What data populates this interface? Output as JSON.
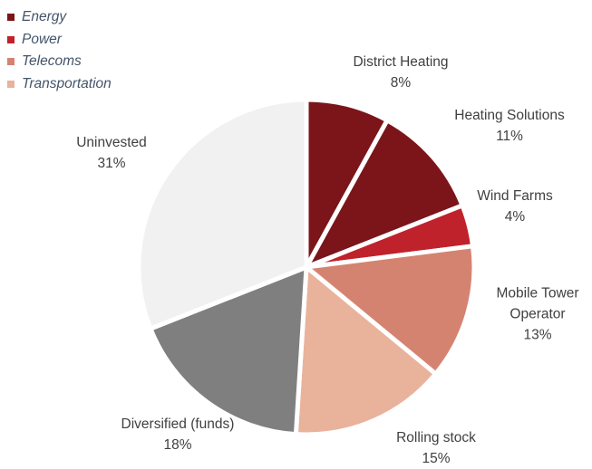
{
  "chart_data": {
    "type": "pie",
    "legend": [
      {
        "name": "Energy",
        "color": "#7b1519"
      },
      {
        "name": "Power",
        "color": "#c0222b"
      },
      {
        "name": "Telecoms",
        "color": "#d58371"
      },
      {
        "name": "Transportation",
        "color": "#e9b29b"
      }
    ],
    "categories": [
      "District Heating",
      "Heating Solutions",
      "Wind Farms",
      "Mobile Tower Operator",
      "Rolling stock",
      "Diversified (funds)",
      "Uninvested"
    ],
    "values": [
      8,
      11,
      4,
      13,
      15,
      18,
      31
    ],
    "value_labels": [
      "8%",
      "11%",
      "4%",
      "13%",
      "15%",
      "18%",
      "31%"
    ],
    "colors": [
      "#7b1519",
      "#7b1519",
      "#c0222b",
      "#d58371",
      "#e9b29b",
      "#7f7f7f",
      "#f1f1f1"
    ]
  }
}
